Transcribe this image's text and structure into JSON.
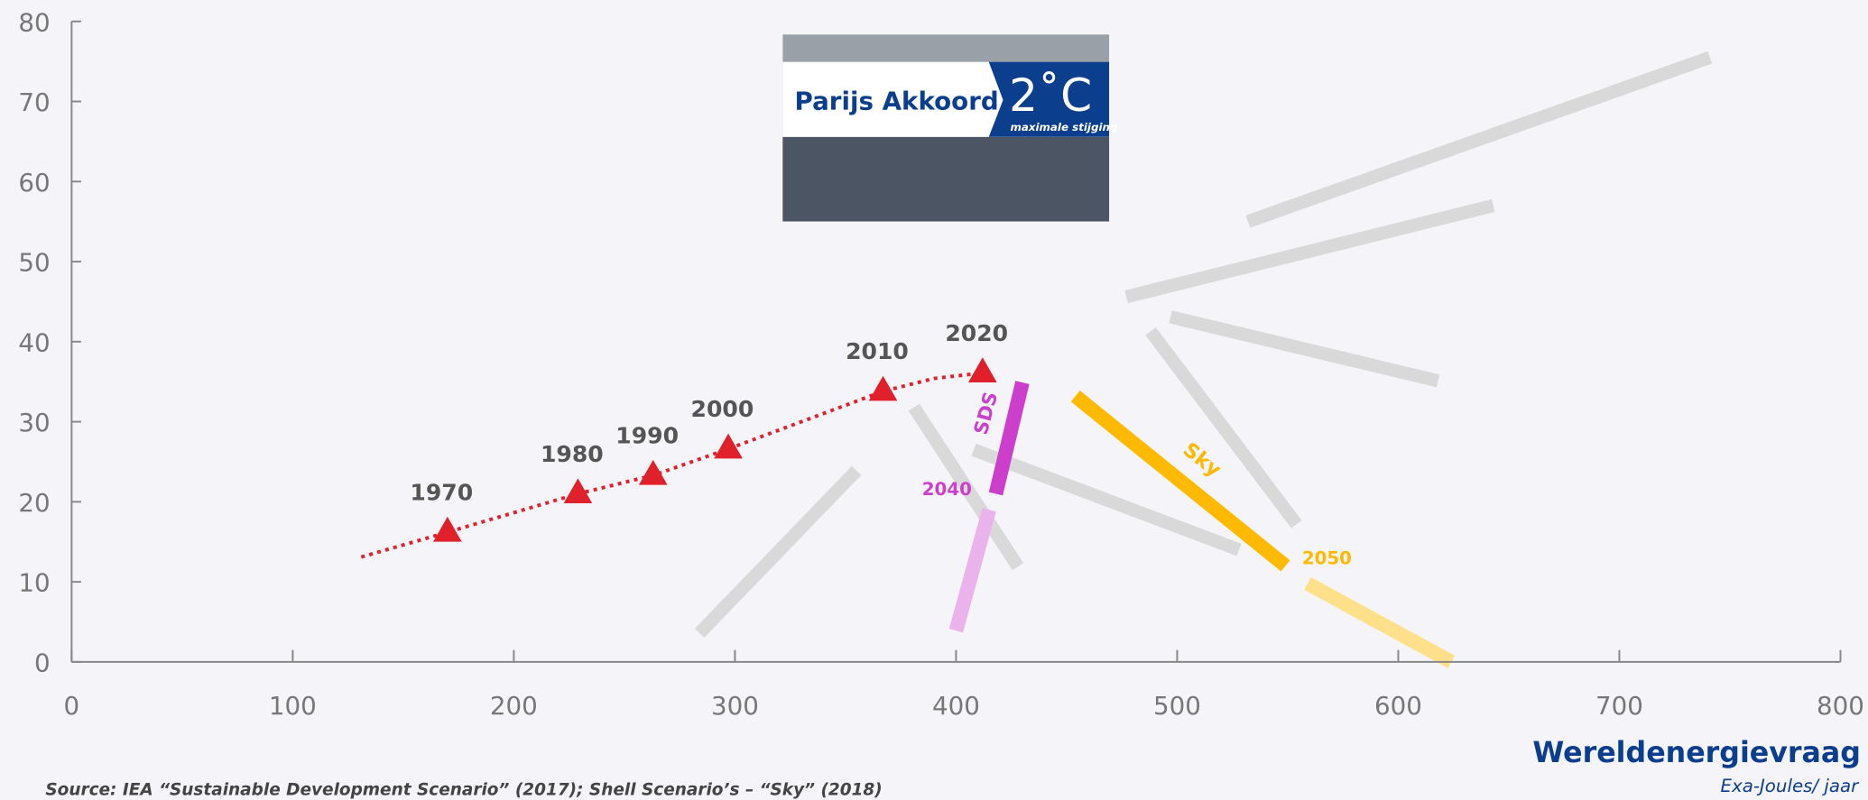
{
  "chart_data": {
    "type": "line",
    "xlim": [
      0,
      800
    ],
    "xticks": [
      0,
      100,
      200,
      300,
      400,
      500,
      600,
      700,
      800
    ],
    "ylim": [
      0,
      80
    ],
    "yticks": [
      0,
      10,
      20,
      30,
      40,
      50,
      60,
      70,
      80
    ],
    "x_label": "Wereldenergievraag",
    "x_unit": "Exa-Joules/ jaar",
    "source": "Source: IEA “Sustainable Development Scenario” (2017);  Shell Scenario’s – “Sky” (2018)",
    "image": {
      "title": "Parijs Akkoord",
      "target": "2˚C",
      "subtitle": "maximale stijging"
    },
    "history": {
      "color": "#e0202a",
      "line_x": [
        131,
        170,
        229,
        263,
        297,
        367,
        390,
        412
      ],
      "line_y": [
        13.1,
        16.2,
        21,
        23.3,
        26.6,
        33.8,
        35.4,
        36.1
      ],
      "labels": [
        "1970",
        "1980",
        "1990",
        "2000",
        "2010",
        "2020"
      ],
      "x": [
        170,
        229,
        263,
        297,
        367,
        412
      ],
      "y": [
        16.2,
        21,
        23.3,
        26.6,
        33.8,
        36.1
      ]
    },
    "scenarios": [
      {
        "color": "#d9d9d9",
        "x": [
          284,
          355
        ],
        "y": [
          3.6,
          23.9
        ]
      },
      {
        "color": "#d9d9d9",
        "x": [
          381,
          428
        ],
        "y": [
          31.8,
          11.9
        ]
      },
      {
        "color": "#d9d9d9",
        "x": [
          408,
          528
        ],
        "y": [
          26.5,
          14.0
        ]
      },
      {
        "color": "#d9d9d9",
        "x": [
          488,
          554
        ],
        "y": [
          41.3,
          17.2
        ]
      },
      {
        "color": "#d9d9d9",
        "x": [
          497,
          618
        ],
        "y": [
          43.1,
          35.1
        ]
      },
      {
        "color": "#d9d9d9",
        "x": [
          477,
          643
        ],
        "y": [
          45.6,
          57.0
        ]
      },
      {
        "color": "#d9d9d9",
        "x": [
          532,
          741
        ],
        "y": [
          55.0,
          75.5
        ]
      },
      {
        "color": "#cc3fcc",
        "x": [
          430,
          418
        ],
        "y": [
          34.9,
          21.0
        ],
        "label": "SDS",
        "end_label": "2040"
      },
      {
        "color": "#ebb3eb",
        "x": [
          415,
          400
        ],
        "y": [
          19.0,
          3.9
        ]
      },
      {
        "color": "#ffba00",
        "x": [
          454,
          549
        ],
        "y": [
          33.2,
          12.0
        ],
        "label": "Sky",
        "end_label": "2050"
      },
      {
        "color": "#ffe08a",
        "x": [
          559,
          624
        ],
        "y": [
          9.8,
          0
        ]
      }
    ]
  }
}
